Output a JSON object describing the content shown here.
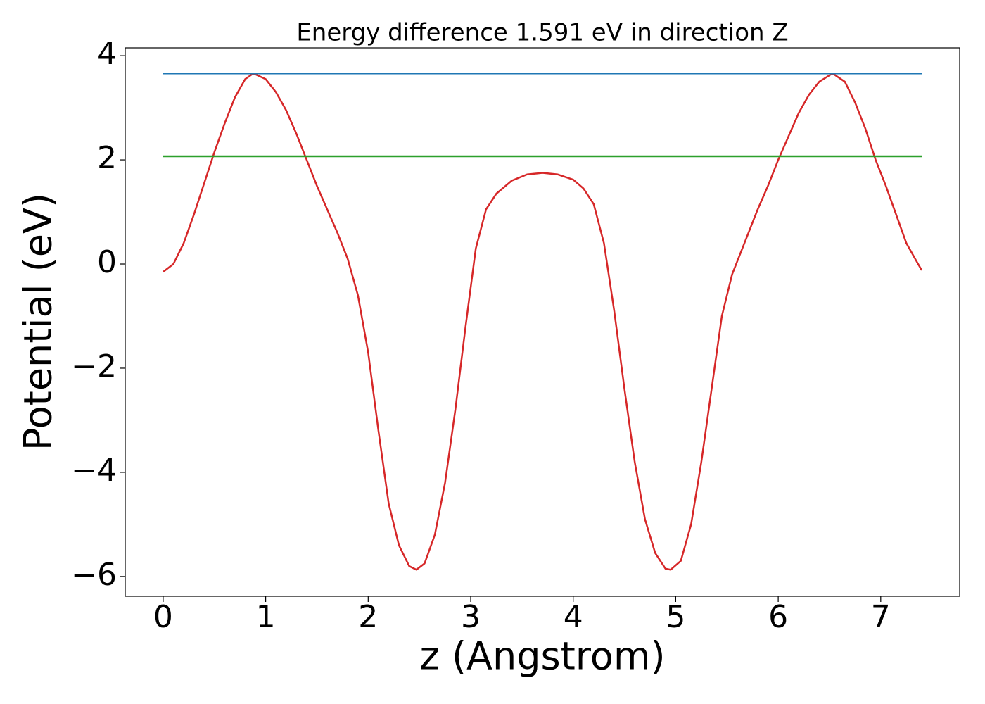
{
  "chart_data": {
    "type": "line",
    "title": "Energy difference 1.591 eV in direction Z",
    "x_label": "z (Angstrom)",
    "y_label": "Potential (eV)",
    "series": [
      {
        "color": "#d62728",
        "x": [
          0,
          0.1,
          0.2,
          0.3,
          0.4,
          0.5,
          0.6,
          0.7,
          0.8,
          0.88,
          1.0,
          1.1,
          1.2,
          1.3,
          1.4,
          1.5,
          1.6,
          1.7,
          1.8,
          1.9,
          2.0,
          2.1,
          2.2,
          2.3,
          2.4,
          2.47,
          2.55,
          2.65,
          2.75,
          2.85,
          2.95,
          3.05,
          3.15,
          3.25,
          3.4,
          3.55,
          3.7,
          3.85,
          4.0,
          4.1,
          4.2,
          4.3,
          4.4,
          4.5,
          4.6,
          4.7,
          4.8,
          4.9,
          4.95,
          5.05,
          5.15,
          5.25,
          5.35,
          5.45,
          5.55,
          5.7,
          5.8,
          5.9,
          6.0,
          6.1,
          6.2,
          6.3,
          6.4,
          6.53,
          6.65,
          6.75,
          6.85,
          6.95,
          7.05,
          7.15,
          7.25,
          7.35,
          7.4
        ],
        "values": [
          -0.15,
          0.0,
          0.4,
          0.95,
          1.55,
          2.15,
          2.7,
          3.2,
          3.55,
          3.66,
          3.55,
          3.3,
          2.95,
          2.5,
          2.0,
          1.5,
          1.05,
          0.6,
          0.1,
          -0.6,
          -1.7,
          -3.2,
          -4.6,
          -5.4,
          -5.8,
          -5.87,
          -5.75,
          -5.2,
          -4.2,
          -2.8,
          -1.2,
          0.3,
          1.05,
          1.35,
          1.6,
          1.72,
          1.75,
          1.72,
          1.62,
          1.45,
          1.15,
          0.4,
          -0.9,
          -2.4,
          -3.8,
          -4.9,
          -5.55,
          -5.85,
          -5.87,
          -5.7,
          -5.0,
          -3.8,
          -2.4,
          -1.0,
          -0.2,
          0.55,
          1.05,
          1.5,
          2.0,
          2.45,
          2.9,
          3.25,
          3.5,
          3.66,
          3.5,
          3.1,
          2.6,
          2.0,
          1.5,
          0.95,
          0.4,
          0.05,
          -0.12
        ]
      },
      {
        "color": "#1f77b4",
        "x": [
          0,
          7.4
        ],
        "values": [
          3.66,
          3.66
        ]
      },
      {
        "color": "#2ca02c",
        "x": [
          0,
          7.4
        ],
        "values": [
          2.069,
          2.069
        ]
      }
    ],
    "xlim": [
      -0.37,
      7.77
    ],
    "ylim": [
      -6.38,
      4.15
    ],
    "xticks": [
      0,
      1,
      2,
      3,
      4,
      5,
      6,
      7
    ],
    "yticks": [
      {
        "value": -6,
        "label": "−6"
      },
      {
        "value": -4,
        "label": "−4"
      },
      {
        "value": -2,
        "label": "−2"
      },
      0,
      2,
      4
    ]
  }
}
